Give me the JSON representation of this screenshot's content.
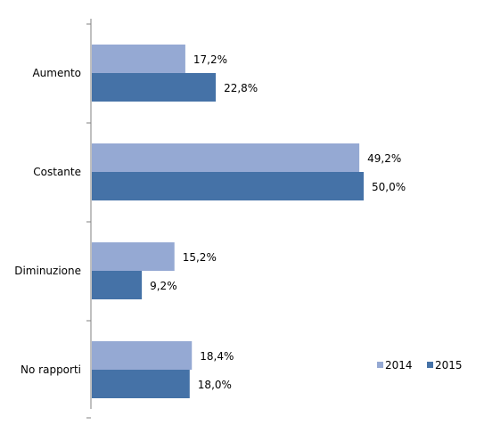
{
  "chart_data": {
    "type": "bar",
    "orientation": "horizontal",
    "categories": [
      "Aumento",
      "Costante",
      "Diminuzione",
      "No rapporti"
    ],
    "series": [
      {
        "name": "2014",
        "values": [
          17.2,
          49.2,
          15.2,
          18.4
        ],
        "labels": [
          "17,2%",
          "49,2%",
          "15,2%",
          "18,4%"
        ],
        "color": "#95a9d3"
      },
      {
        "name": "2015",
        "values": [
          22.8,
          50.0,
          9.2,
          18.0
        ],
        "labels": [
          "22,8%",
          "50,0%",
          "9,2%",
          "18,0%"
        ],
        "color": "#4572a7"
      }
    ],
    "xlim": [
      0,
      70
    ],
    "grid": false,
    "legend_position": "right"
  }
}
